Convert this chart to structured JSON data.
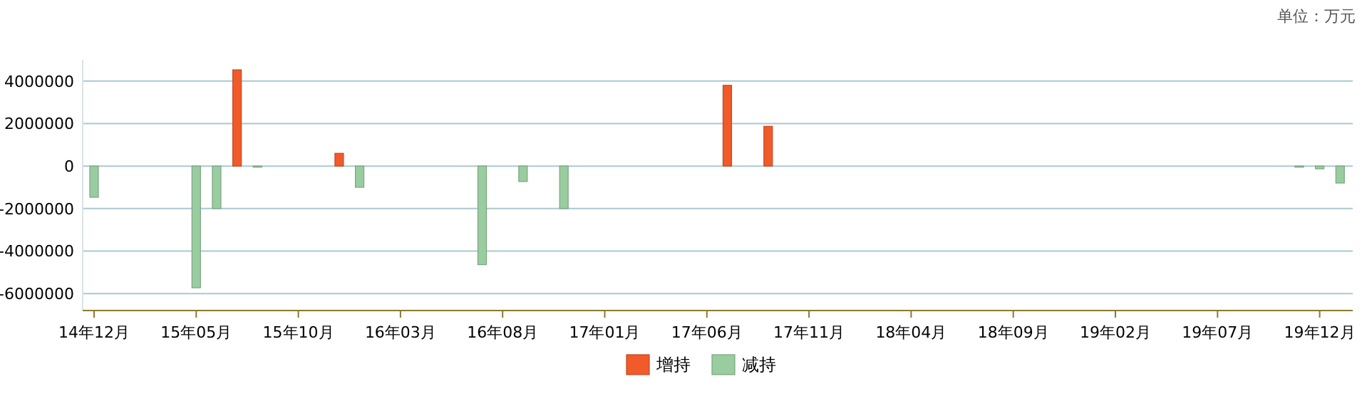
{
  "chart_data": {
    "type": "bar",
    "categories": [
      "14年12月",
      null,
      null,
      null,
      null,
      "15年05月",
      null,
      null,
      null,
      null,
      "15年10月",
      null,
      null,
      null,
      null,
      "16年03月",
      null,
      null,
      null,
      null,
      "16年08月",
      null,
      null,
      null,
      null,
      "17年01月",
      null,
      null,
      null,
      null,
      "17年06月",
      null,
      null,
      null,
      null,
      "17年11月",
      null,
      null,
      null,
      null,
      "18年04月",
      null,
      null,
      null,
      null,
      "18年09月",
      null,
      null,
      null,
      null,
      "19年02月",
      null,
      null,
      null,
      null,
      "19年07月",
      null,
      null,
      null,
      null,
      "19年12月",
      null
    ],
    "series": [
      {
        "name": "增持",
        "color": "#f15a29",
        "values": [
          null,
          null,
          null,
          null,
          null,
          null,
          null,
          4530000,
          null,
          null,
          null,
          null,
          600000,
          null,
          null,
          null,
          null,
          null,
          null,
          null,
          null,
          null,
          null,
          null,
          null,
          null,
          null,
          null,
          null,
          null,
          null,
          3800000,
          null,
          1870000,
          null,
          null,
          null,
          null,
          null,
          null,
          null,
          null,
          null,
          null,
          null,
          null,
          null,
          null,
          null,
          null,
          null,
          null,
          null,
          null,
          null,
          null,
          null,
          null,
          null,
          null,
          null,
          null
        ]
      },
      {
        "name": "减持",
        "color": "#99cc9f",
        "values": [
          -1470000,
          null,
          null,
          null,
          null,
          -5730000,
          -2000000,
          null,
          -30000,
          null,
          null,
          null,
          null,
          -1000000,
          null,
          null,
          null,
          null,
          null,
          -4640000,
          null,
          -730000,
          null,
          -2000000,
          null,
          null,
          null,
          null,
          null,
          null,
          null,
          null,
          null,
          null,
          null,
          null,
          null,
          null,
          null,
          null,
          null,
          null,
          null,
          null,
          null,
          null,
          null,
          null,
          null,
          null,
          null,
          null,
          null,
          null,
          null,
          null,
          null,
          null,
          null,
          -20000,
          -130000,
          -800000
        ]
      }
    ],
    "ylim": [
      -6800000,
      5000000
    ],
    "yticks": [
      -6000000,
      -4000000,
      -2000000,
      0,
      2000000,
      4000000
    ],
    "grid": "y",
    "legend": "bottom",
    "annotations": [
      "单位：万元"
    ]
  }
}
